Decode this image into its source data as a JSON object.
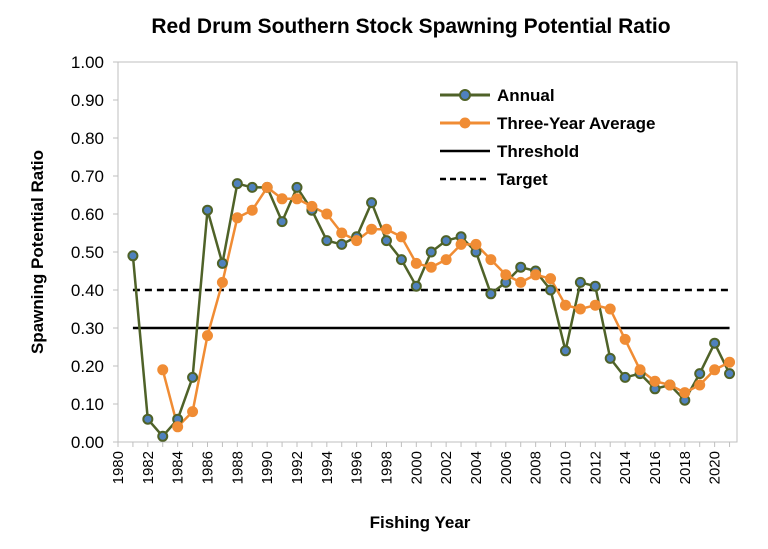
{
  "chart_data": {
    "type": "line",
    "title": "Red Drum Southern Stock Spawning Potential Ratio",
    "xlabel": "Fishing Year",
    "ylabel": "Spawning Potential Ratio",
    "xlim": [
      1980,
      2021.5
    ],
    "ylim": [
      0,
      1
    ],
    "x_ticks": [
      "1980",
      "1982",
      "1984",
      "1986",
      "1988",
      "1990",
      "1992",
      "1994",
      "1996",
      "1998",
      "2000",
      "2002",
      "2004",
      "2006",
      "2008",
      "2010",
      "2012",
      "2014",
      "2016",
      "2018",
      "2020"
    ],
    "y_ticks": [
      "0.00",
      "0.10",
      "0.20",
      "0.30",
      "0.40",
      "0.50",
      "0.60",
      "0.70",
      "0.80",
      "0.90",
      "1.00"
    ],
    "legend_position": "top-right",
    "series": [
      {
        "name": "Annual",
        "color": "#4f6228",
        "marker_color": "#4f81bd",
        "x": [
          1981,
          1982,
          1983,
          1984,
          1985,
          1986,
          1987,
          1988,
          1989,
          1990,
          1991,
          1992,
          1993,
          1994,
          1995,
          1996,
          1997,
          1998,
          1999,
          2000,
          2001,
          2002,
          2003,
          2004,
          2005,
          2006,
          2007,
          2008,
          2009,
          2010,
          2011,
          2012,
          2013,
          2014,
          2015,
          2016,
          2017,
          2018,
          2019,
          2020,
          2021
        ],
        "values": [
          0.49,
          0.06,
          0.015,
          0.06,
          0.17,
          0.61,
          0.47,
          0.68,
          0.67,
          0.67,
          0.58,
          0.67,
          0.61,
          0.53,
          0.52,
          0.54,
          0.63,
          0.53,
          0.48,
          0.41,
          0.5,
          0.53,
          0.54,
          0.5,
          0.39,
          0.42,
          0.46,
          0.45,
          0.4,
          0.24,
          0.42,
          0.41,
          0.22,
          0.17,
          0.18,
          0.14,
          0.15,
          0.11,
          0.18,
          0.26,
          0.18
        ]
      },
      {
        "name": "Three-Year Average",
        "color": "#f08c34",
        "marker_color": "#f08c34",
        "x": [
          1983,
          1984,
          1985,
          1986,
          1987,
          1988,
          1989,
          1990,
          1991,
          1992,
          1993,
          1994,
          1995,
          1996,
          1997,
          1998,
          1999,
          2000,
          2001,
          2002,
          2003,
          2004,
          2005,
          2006,
          2007,
          2008,
          2009,
          2010,
          2011,
          2012,
          2013,
          2014,
          2015,
          2016,
          2017,
          2018,
          2019,
          2020,
          2021
        ],
        "values": [
          0.19,
          0.04,
          0.08,
          0.28,
          0.42,
          0.59,
          0.61,
          0.67,
          0.64,
          0.64,
          0.62,
          0.6,
          0.55,
          0.53,
          0.56,
          0.56,
          0.54,
          0.47,
          0.46,
          0.48,
          0.52,
          0.52,
          0.48,
          0.44,
          0.42,
          0.44,
          0.43,
          0.36,
          0.35,
          0.36,
          0.35,
          0.27,
          0.19,
          0.16,
          0.15,
          0.13,
          0.15,
          0.19,
          0.21
        ]
      },
      {
        "name": "Threshold",
        "color": "#000000",
        "style": "solid",
        "x": [
          1981,
          2021
        ],
        "values": [
          0.3,
          0.3
        ]
      },
      {
        "name": "Target",
        "color": "#000000",
        "style": "dashed",
        "x": [
          1981,
          2021
        ],
        "values": [
          0.4,
          0.4
        ]
      }
    ]
  }
}
